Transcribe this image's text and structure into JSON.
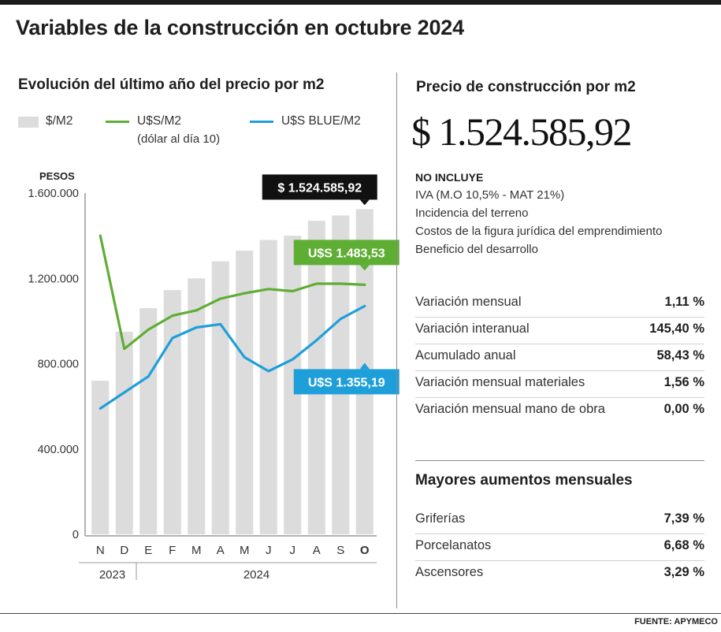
{
  "title": "Variables de la construcción en octubre 2024",
  "source": "FUENTE: APYMECO",
  "chart_data": {
    "type": "bar",
    "title": "Evolución del último año del precio por m2",
    "ylabel": "PESOS",
    "ylim": [
      0,
      1600000
    ],
    "yticks": [
      "0",
      "400.000",
      "800.000",
      "1.200.000",
      "1.600.000"
    ],
    "ytick_values": [
      0,
      400000,
      800000,
      1200000,
      1600000
    ],
    "categories": [
      "N",
      "D",
      "E",
      "F",
      "M",
      "A",
      "M",
      "J",
      "J",
      "A",
      "S",
      "O"
    ],
    "year_labels": [
      "2023",
      "2024"
    ],
    "legend": {
      "bar": "$/M2",
      "green": "U$S/M2",
      "green_note": "(dólar al día 10)",
      "blue": "U$S BLUE/M2"
    },
    "series": [
      {
        "name": "$/M2",
        "kind": "bar",
        "color": "#dcdcdd",
        "values": [
          720000,
          950000,
          1060000,
          1145000,
          1200000,
          1280000,
          1330000,
          1380000,
          1400000,
          1470000,
          1495000,
          1524585.92
        ]
      },
      {
        "name": "U$S/M2",
        "kind": "line",
        "color": "#5fae34",
        "values": [
          1400000,
          870000,
          960000,
          1025000,
          1050000,
          1105000,
          1130000,
          1150000,
          1140000,
          1175000,
          1175000,
          1170000
        ]
      },
      {
        "name": "U$S BLUE/M2",
        "kind": "line",
        "color": "#1f9fd9",
        "values": [
          590000,
          665000,
          740000,
          920000,
          970000,
          985000,
          830000,
          765000,
          820000,
          910000,
          1010000,
          1070000
        ]
      }
    ],
    "callouts": [
      {
        "text": "$ 1.524.585,92",
        "series": 0,
        "color": "#111111"
      },
      {
        "text": "U$S 1.483,53",
        "series": 1,
        "color": "#5fae34"
      },
      {
        "text": "U$S 1.355,19",
        "series": 2,
        "color": "#1f9fd9"
      }
    ]
  },
  "right": {
    "title": "Precio de construcción por m2",
    "price": "$ 1.524.585,92",
    "no_incluye_heading": "NO INCLUYE",
    "no_incluye": [
      "IVA (M.O 10,5% - MAT 21%)",
      "Incidencia del terreno",
      "Costos de la figura jurídica del emprendimiento",
      "Beneficio del desarrollo"
    ],
    "stats": [
      {
        "label": "Variación mensual",
        "value": "1,11 %"
      },
      {
        "label": "Variación interanual",
        "value": "145,40 %"
      },
      {
        "label": "Acumulado anual",
        "value": "58,43 %"
      },
      {
        "label": "Variación mensual materiales",
        "value": "1,56 %"
      },
      {
        "label": "Variación mensual mano de obra",
        "value": "0,00 %"
      }
    ],
    "increases_title": "Mayores aumentos mensuales",
    "increases": [
      {
        "label": "Griferías",
        "value": "7,39 %"
      },
      {
        "label": "Porcelanatos",
        "value": "6,68 %"
      },
      {
        "label": "Ascensores",
        "value": "3,29 %"
      }
    ]
  }
}
